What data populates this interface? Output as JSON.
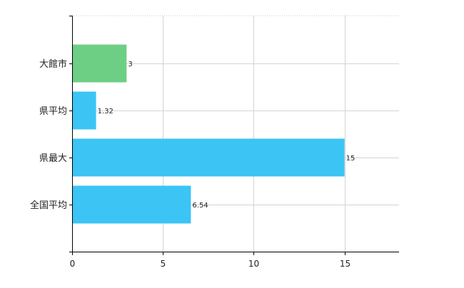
{
  "chart_data": {
    "type": "bar",
    "orientation": "horizontal",
    "categories": [
      "大館市",
      "県平均",
      "県最大",
      "全国平均"
    ],
    "values": [
      3,
      1.32,
      15,
      6.54
    ],
    "value_labels": [
      "3",
      "1.32",
      "15",
      "6.54"
    ],
    "colors": [
      "#6dcf84",
      "#3cc4f5",
      "#3cc4f5",
      "#3cc4f5"
    ],
    "xlim": [
      0,
      18
    ],
    "xticks": [
      0,
      5,
      10,
      15
    ],
    "xtick_labels": [
      "0",
      "5",
      "10",
      "15"
    ],
    "grid": true,
    "legend": "none",
    "title": "",
    "xlabel": "",
    "ylabel": ""
  }
}
